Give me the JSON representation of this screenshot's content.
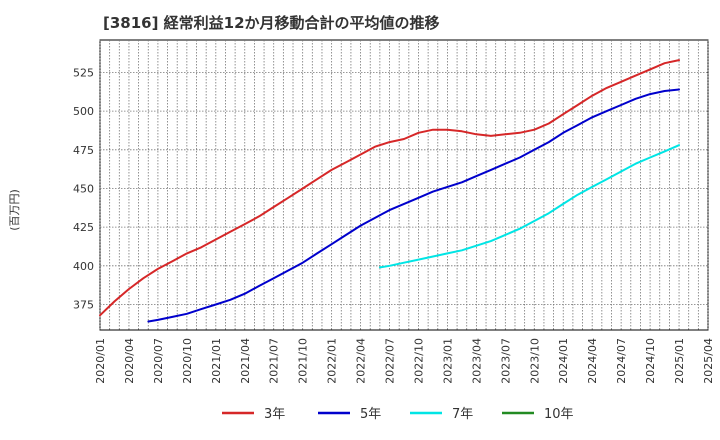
{
  "chart_data": {
    "type": "line",
    "title": "[3816]  経常利益12か月移動合計の平均値の推移",
    "ylabel": "(百万円)",
    "xlabel": "",
    "ylim": [
      358.5,
      546
    ],
    "yticks": [
      375,
      400,
      425,
      450,
      475,
      500,
      525
    ],
    "xlim": [
      0,
      20
    ],
    "xtick_labels": [
      "2020/01",
      "2020/04",
      "2020/07",
      "2020/10",
      "2021/01",
      "2021/04",
      "2021/07",
      "2021/10",
      "2022/01",
      "2022/04",
      "2022/07",
      "2022/10",
      "2023/01",
      "2023/04",
      "2023/07",
      "2023/10",
      "2024/01",
      "2024/04",
      "2024/07",
      "2024/10",
      "2025/01",
      "2025/04"
    ],
    "grid": true,
    "legend_position": "bottom",
    "series": [
      {
        "name": "3年",
        "color": "#d62728",
        "x": [
          0,
          0.5,
          1,
          1.5,
          2,
          2.5,
          3,
          3.5,
          4,
          4.5,
          5,
          5.5,
          6,
          6.5,
          7,
          7.5,
          8,
          8.5,
          9,
          9.5,
          10,
          10.5,
          11,
          11.5,
          12,
          12.5,
          13,
          13.5,
          14,
          14.5,
          15,
          15.5,
          16,
          16.5,
          17,
          17.5,
          18,
          18.5,
          19,
          19.5,
          20
        ],
        "values": [
          368,
          377,
          385,
          392,
          398,
          403,
          408,
          412,
          417,
          422,
          427,
          432,
          438,
          444,
          450,
          456,
          462,
          467,
          472,
          477,
          480,
          482,
          486,
          488,
          488,
          487,
          485,
          484,
          485,
          486,
          488,
          492,
          498,
          504,
          510,
          515,
          519,
          523,
          527,
          531,
          533
        ]
      },
      {
        "name": "5年",
        "color": "#0000cc",
        "x": [
          1.67,
          2,
          2.5,
          3,
          3.5,
          4,
          4.5,
          5,
          5.5,
          6,
          6.5,
          7,
          7.5,
          8,
          8.5,
          9,
          9.5,
          10,
          10.5,
          11,
          11.5,
          12,
          12.5,
          13,
          13.5,
          14,
          14.5,
          15,
          15.5,
          16,
          16.5,
          17,
          17.5,
          18,
          18.5,
          19,
          19.5,
          20
        ],
        "values": [
          364,
          365,
          367,
          369,
          372,
          375,
          378,
          382,
          387,
          392,
          397,
          402,
          408,
          414,
          420,
          426,
          431,
          436,
          440,
          444,
          448,
          451,
          454,
          458,
          462,
          466,
          470,
          475,
          480,
          486,
          491,
          496,
          500,
          504,
          508,
          511,
          513,
          514
        ]
      },
      {
        "name": "7年",
        "color": "#00e5e5",
        "x": [
          9.67,
          10,
          10.5,
          11,
          11.5,
          12,
          12.5,
          13,
          13.5,
          14,
          14.5,
          15,
          15.5,
          16,
          16.5,
          17,
          17.5,
          18,
          18.5,
          19,
          19.5,
          20
        ],
        "values": [
          399,
          400,
          402,
          404,
          406,
          408,
          410,
          413,
          416,
          420,
          424,
          429,
          434,
          440,
          446,
          451,
          456,
          461,
          466,
          470,
          474,
          478
        ]
      },
      {
        "name": "10年",
        "color": "#228b22",
        "x": [],
        "values": []
      }
    ]
  }
}
